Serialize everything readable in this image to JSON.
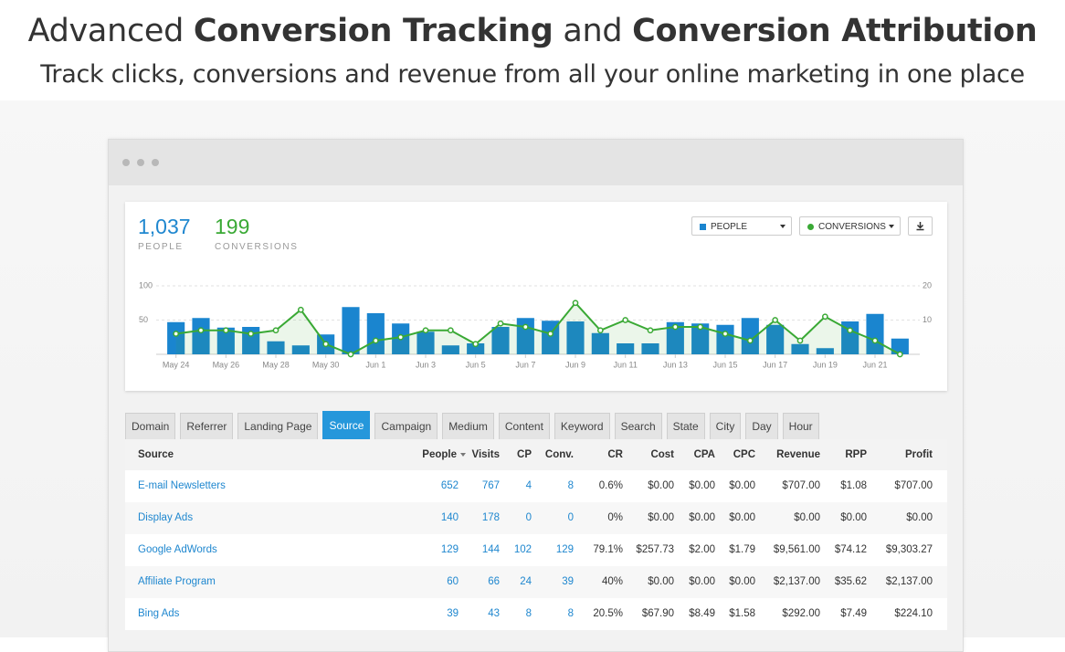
{
  "header": {
    "title": [
      "Advanced",
      "Conversion Tracking",
      "and",
      "Conversion Attribution"
    ],
    "subtitle": "Track clicks, conversions and revenue from all your online marketing in one place"
  },
  "stats": [
    {
      "value": "1,037",
      "label": "PEOPLE"
    },
    {
      "value": "199",
      "label": "CONVERSIONS"
    }
  ],
  "chart_data": {
    "type": "bar",
    "categories": [
      "May 24",
      null,
      "May 26",
      null,
      "May 28",
      null,
      "May 30",
      null,
      "Jun 1",
      null,
      "Jun 3",
      null,
      "Jun 5",
      null,
      "Jun 7",
      null,
      "Jun 9",
      null,
      "Jun 11",
      null,
      "Jun 13",
      null,
      "Jun 15",
      null,
      "Jun 17",
      null,
      "Jun 19",
      null,
      "Jun 21",
      null
    ],
    "series": [
      {
        "name": "PEOPLE",
        "type": "bar",
        "color": "#1a85cf",
        "values": [
          47,
          53,
          39,
          40,
          19,
          13,
          29,
          69,
          60,
          45,
          33,
          13,
          16,
          40,
          53,
          49,
          48,
          31,
          16,
          16,
          47,
          45,
          43,
          53,
          43,
          15,
          9,
          48,
          59,
          23
        ]
      },
      {
        "name": "CONVERSIONS",
        "type": "line",
        "axis": "y2",
        "color": "#3aa935",
        "values": [
          6,
          7,
          7,
          6,
          7,
          13,
          3,
          0,
          4,
          5,
          7,
          7,
          3,
          9,
          8,
          6,
          15,
          7,
          10,
          7,
          8,
          8,
          6,
          4,
          10,
          4,
          11,
          7,
          4,
          0
        ]
      }
    ],
    "ylim": [
      0,
      100
    ],
    "yticks": [
      50,
      100
    ],
    "y2lim": [
      0,
      20
    ],
    "y2ticks": [
      10,
      20
    ],
    "grid": true
  },
  "tabs": {
    "items": [
      "Domain",
      "Referrer",
      "Landing Page",
      "Source",
      "Campaign",
      "Medium",
      "Content",
      "Keyword",
      "Search",
      "State",
      "City",
      "Day",
      "Hour"
    ],
    "active": 3
  },
  "table": {
    "columns": [
      "Source",
      "People",
      "Visits",
      "CP",
      "Conv.",
      "CR",
      "Cost",
      "CPA",
      "CPC",
      "Revenue",
      "RPP",
      "Profit"
    ],
    "rows": [
      [
        "E-mail Newsletters",
        "652",
        "767",
        "4",
        "8",
        "0.6%",
        "$0.00",
        "$0.00",
        "$0.00",
        "$707.00",
        "$1.08",
        "$707.00"
      ],
      [
        "Display Ads",
        "140",
        "178",
        "0",
        "0",
        "0%",
        "$0.00",
        "$0.00",
        "$0.00",
        "$0.00",
        "$0.00",
        "$0.00"
      ],
      [
        "Google AdWords",
        "129",
        "144",
        "102",
        "129",
        "79.1%",
        "$257.73",
        "$2.00",
        "$1.79",
        "$9,561.00",
        "$74.12",
        "$9,303.27"
      ],
      [
        "Affiliate Program",
        "60",
        "66",
        "24",
        "39",
        "40%",
        "$0.00",
        "$0.00",
        "$0.00",
        "$2,137.00",
        "$35.62",
        "$2,137.00"
      ],
      [
        "Bing Ads",
        "39",
        "43",
        "8",
        "8",
        "20.5%",
        "$67.90",
        "$8.49",
        "$1.58",
        "$292.00",
        "$7.49",
        "$224.10"
      ]
    ]
  }
}
